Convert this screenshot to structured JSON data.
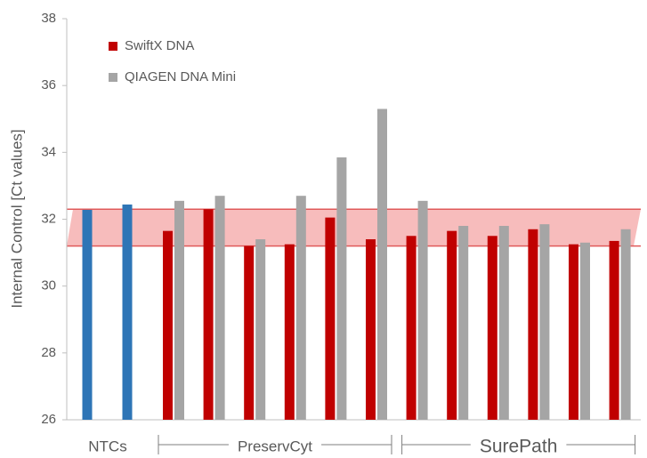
{
  "chart_data": {
    "type": "bar",
    "ylabel": "Internal Control [Ct values]",
    "ylim": [
      26,
      38
    ],
    "yticks": [
      26,
      28,
      30,
      32,
      34,
      36,
      38
    ],
    "reference_band": {
      "ymin": 31.2,
      "ymax": 32.3,
      "color": "#f4a6a6",
      "edge_color": "#e05a5a"
    },
    "groups": [
      {
        "label": "NTCs"
      },
      {
        "label": "PreservCyt"
      },
      {
        "label": "SurePath"
      }
    ],
    "ntc": {
      "color": "#2e75b6",
      "values": [
        32.28,
        32.44
      ]
    },
    "series": [
      {
        "name": "SwiftX DNA",
        "color": "#c00000",
        "values": [
          31.65,
          32.3,
          31.2,
          31.25,
          32.05,
          31.4,
          31.5,
          31.65,
          31.5,
          31.7,
          31.25,
          31.35
        ]
      },
      {
        "name": "QIAGEN DNA Mini",
        "color": "#a5a5a5",
        "values": [
          32.55,
          32.7,
          31.4,
          32.7,
          33.85,
          35.3,
          32.55,
          31.8,
          31.8,
          31.85,
          31.3,
          31.7
        ]
      }
    ]
  }
}
